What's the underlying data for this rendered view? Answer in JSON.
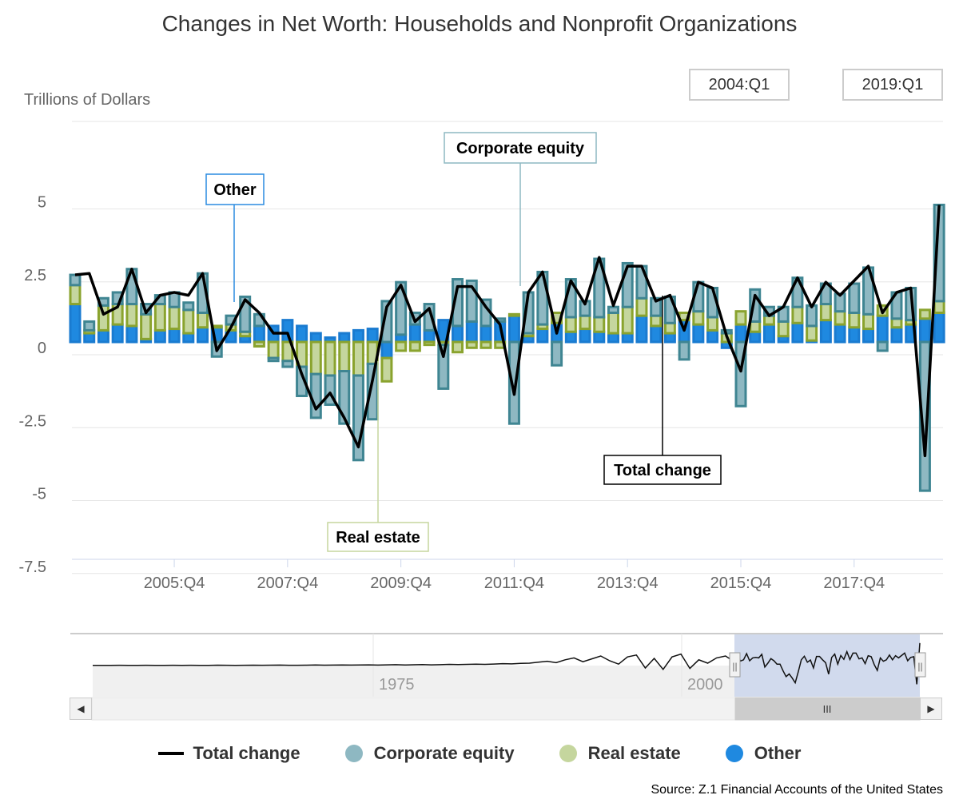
{
  "chart_data": {
    "type": "bar",
    "title": "Changes in Net Worth: Households and Nonprofit Organizations",
    "ylabel": "Trillions of Dollars",
    "ylim": [
      -7.5,
      7.5
    ],
    "y_ticks": [
      {
        "value": 5,
        "label": "5"
      },
      {
        "value": 2.5,
        "label": "2.5"
      },
      {
        "value": 0,
        "label": "0"
      },
      {
        "value": -2.5,
        "label": "-2.5"
      },
      {
        "value": -5,
        "label": "-5"
      },
      {
        "value": -7.5,
        "label": "-7.5"
      }
    ],
    "x_start": "2004:Q1",
    "x_ticks": [
      {
        "index": 7,
        "label": "2005:Q4"
      },
      {
        "index": 15,
        "label": "2007:Q4"
      },
      {
        "index": 23,
        "label": "2009:Q4"
      },
      {
        "index": 31,
        "label": "2011:Q4"
      },
      {
        "index": 39,
        "label": "2013:Q4"
      },
      {
        "index": 47,
        "label": "2015:Q4"
      },
      {
        "index": 55,
        "label": "2017:Q4"
      }
    ],
    "series": [
      {
        "name": "Total change",
        "color": "#000000",
        "values": [
          2.3,
          2.35,
          0.95,
          1.2,
          2.5,
          1.0,
          1.6,
          1.7,
          1.6,
          2.35,
          -0.3,
          0.5,
          1.45,
          1.0,
          0.3,
          0.3,
          -1.1,
          -2.3,
          -1.75,
          -2.6,
          -3.6,
          -1.3,
          1.2,
          1.95,
          0.7,
          1.15,
          -0.5,
          1.9,
          1.9,
          1.2,
          0.6,
          -1.8,
          1.7,
          2.4,
          0.3,
          2.1,
          1.3,
          2.9,
          1.25,
          2.6,
          2.6,
          1.4,
          1.6,
          0.4,
          2.05,
          1.85,
          0.2,
          -1.0,
          1.6,
          0.9,
          1.2,
          2.2,
          1.2,
          2.05,
          1.6,
          2.1,
          2.6,
          1.0,
          1.7,
          1.85,
          -3.9,
          4.7
        ]
      },
      {
        "name": "Corporate equity",
        "color": "#8eb8c2",
        "values": [
          0.35,
          0.3,
          0.25,
          0.4,
          1.2,
          0.35,
          0.3,
          0.5,
          0.25,
          1.35,
          -0.5,
          0.3,
          1.2,
          0.4,
          -0.1,
          -0.2,
          -1.0,
          -1.5,
          -1.0,
          -1.8,
          -2.9,
          -1.9,
          1.4,
          1.8,
          0.4,
          0.9,
          -1.5,
          1.6,
          1.4,
          0.9,
          0.1,
          -2.8,
          1.4,
          1.8,
          -0.8,
          1.3,
          0.5,
          2.0,
          0.2,
          1.5,
          1.1,
          0.6,
          0.9,
          -0.6,
          1.0,
          1.0,
          0.1,
          -2.2,
          1.1,
          0.3,
          0.5,
          1.0,
          0.7,
          0.7,
          0.6,
          1.0,
          1.6,
          -0.3,
          0.9,
          1.1,
          -5.1,
          3.3
        ]
      },
      {
        "name": "Real estate",
        "color": "#c5d69e",
        "values": [
          0.65,
          0.1,
          0.85,
          0.7,
          0.75,
          0.85,
          0.9,
          0.75,
          0.8,
          0.5,
          0.05,
          0.2,
          0.15,
          -0.15,
          -0.55,
          -0.65,
          -0.85,
          -1.1,
          -1.15,
          -1.0,
          -1.15,
          -0.75,
          -0.8,
          -0.3,
          -0.3,
          -0.1,
          -0.1,
          -0.35,
          -0.2,
          -0.2,
          -0.2,
          0.05,
          0.1,
          0.15,
          0.35,
          0.5,
          0.45,
          0.5,
          0.7,
          0.9,
          0.6,
          0.35,
          0.35,
          0.25,
          0.45,
          0.45,
          0.3,
          0.45,
          0.35,
          0.3,
          0.5,
          0.55,
          0.5,
          0.55,
          0.45,
          0.5,
          0.5,
          0.35,
          0.3,
          0.15,
          0.3,
          0.4
        ]
      },
      {
        "name": "Other",
        "color": "#1f89e0",
        "values": [
          1.3,
          0.3,
          0.4,
          0.6,
          0.55,
          0.1,
          0.4,
          0.45,
          0.3,
          0.5,
          0.5,
          0.4,
          0.2,
          0.55,
          0.55,
          0.75,
          0.55,
          0.3,
          0.15,
          0.3,
          0.4,
          0.45,
          -0.55,
          0.25,
          0.6,
          0.4,
          0.75,
          0.55,
          0.7,
          0.55,
          0.7,
          0.9,
          0.2,
          0.45,
          0.65,
          0.35,
          0.45,
          0.35,
          0.3,
          0.3,
          0.9,
          0.55,
          0.3,
          0.75,
          0.6,
          0.4,
          -0.2,
          0.6,
          0.35,
          0.6,
          0.2,
          0.65,
          0.05,
          0.75,
          0.6,
          0.5,
          0.45,
          0.9,
          0.5,
          0.6,
          0.8,
          1.0
        ]
      }
    ],
    "annotations": [
      {
        "text": "Other",
        "series": "Other",
        "index": 10
      },
      {
        "text": "Corporate equity",
        "series": "Corporate equity",
        "index": 31
      },
      {
        "text": "Real estate",
        "series": "Real estate",
        "index": 22
      },
      {
        "text": "Total change",
        "series": "Total change",
        "index": 42
      }
    ],
    "navigator": {
      "labels": [
        "1975",
        "2000"
      ],
      "values": [
        0.05,
        0.05,
        0.04,
        0.06,
        0.05,
        0.05,
        0.06,
        0.04,
        0.05,
        0.07,
        0.05,
        0.06,
        0.05,
        0.04,
        0.08,
        0.06,
        0.05,
        0.07,
        0.09,
        0.06,
        0.08,
        0.1,
        0.07,
        0.06,
        0.09,
        0.12,
        0.08,
        0.1,
        0.13,
        0.1,
        0.12,
        0.15,
        0.11,
        0.14,
        0.18,
        0.12,
        0.16,
        0.2,
        0.15,
        0.18,
        0.25,
        0.2,
        0.24,
        0.3,
        0.25,
        0.32,
        0.4,
        0.35,
        0.45,
        0.5,
        0.7,
        0.9,
        0.6,
        1.2,
        1.6,
        0.8,
        1.4,
        2.0,
        1.0,
        0.3,
        1.8,
        2.2,
        -0.5,
        1.5,
        -0.8,
        1.8,
        2.4,
        -0.6,
        1.2,
        0.5,
        1.6,
        2.0,
        0.8
      ]
    }
  },
  "controls": {
    "range_start": "2004:Q1",
    "range_end": "2019:Q1",
    "scroll_left": "◀",
    "scroll_right": "▶",
    "scroll_grip": "III",
    "handle_grip": "||"
  },
  "legend": [
    {
      "label": "Total change",
      "color": "#000000",
      "shape": "line"
    },
    {
      "label": "Corporate equity",
      "color": "#8eb8c2",
      "shape": "dot"
    },
    {
      "label": "Real estate",
      "color": "#c5d69e",
      "shape": "dot"
    },
    {
      "label": "Other",
      "color": "#1f89e0",
      "shape": "dot"
    }
  ],
  "source": "Source: Z.1 Financial Accounts of the United States"
}
